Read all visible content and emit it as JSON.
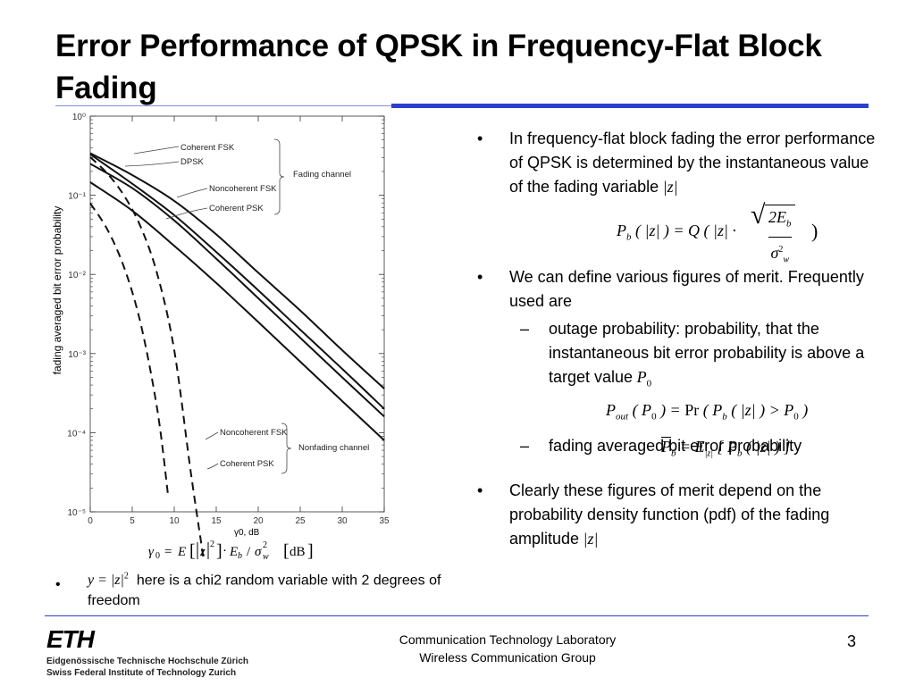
{
  "slide": {
    "title": "Error Performance of QPSK in Frequency-Flat Block Fading",
    "page_number": "3"
  },
  "footer": {
    "line1": "Communication Technology Laboratory",
    "line2": "Wireless Communication Group",
    "logo_mark": "ETH",
    "logo_line1": "Eidgenössische Technische Hochschule Zürich",
    "logo_line2": "Swiss Federal Institute of Technology Zurich"
  },
  "right_bullets": {
    "b1": "In frequency-flat block fading the error performance of QPSK is determined by the instantaneous value of the fading variable",
    "b2": "We can define various figures of merit. Frequently used are",
    "b2_sub1": "outage probability: probability, that the instantaneous bit error probability is above a target value",
    "b2_sub2": "fading averaged bit error probability",
    "b3": "Clearly these figures of merit depend on the probability density function (pdf) of the fading amplitude",
    "bullet_glyph": "•",
    "dash_glyph": "–"
  },
  "left_bullet": {
    "text": "here is a chi2 random variable with 2 degrees of freedom"
  },
  "chart_data": {
    "type": "line",
    "xlabel": "γ0, dB",
    "ylabel": "fading averaged bit error probability",
    "xlim": [
      0,
      35
    ],
    "ylim": [
      1e-05,
      1
    ],
    "y_scale": "log",
    "x_ticks": [
      "0",
      "5",
      "10",
      "15",
      "20",
      "25",
      "30",
      "35"
    ],
    "y_ticks": [
      {
        "value": 1,
        "label": "10⁰"
      },
      {
        "value": 0.1,
        "label": "10⁻¹"
      },
      {
        "value": 0.01,
        "label": "10⁻²"
      },
      {
        "value": 0.001,
        "label": "10⁻³"
      },
      {
        "value": 0.0001,
        "label": "10⁻⁴"
      },
      {
        "value": 1e-05,
        "label": "10⁻⁵"
      }
    ],
    "grid": false,
    "series": [
      {
        "name": "Coherent FSK",
        "style": "solid",
        "x": [
          0,
          5,
          10,
          15,
          20,
          25,
          30,
          35
        ],
        "y": [
          0.34,
          0.18,
          0.085,
          0.032,
          0.0105,
          0.0035,
          0.0011,
          0.00036
        ]
      },
      {
        "name": "DPSK",
        "style": "solid",
        "x": [
          0,
          5,
          10,
          15,
          20,
          25,
          30,
          35
        ],
        "y": [
          0.25,
          0.123,
          0.048,
          0.0158,
          0.005,
          0.00158,
          0.0005,
          0.00016
        ]
      },
      {
        "name": "Noncoherent FSK",
        "style": "solid",
        "x": [
          0,
          5,
          10,
          15,
          20,
          25,
          30,
          35
        ],
        "y": [
          0.33,
          0.14,
          0.056,
          0.0192,
          0.0063,
          0.002,
          0.00064,
          0.0002
        ]
      },
      {
        "name": "Coherent PSK",
        "style": "solid",
        "x": [
          0,
          5,
          10,
          15,
          20,
          25,
          30,
          35
        ],
        "y": [
          0.146,
          0.064,
          0.023,
          0.0078,
          0.0025,
          0.00079,
          0.00025,
          8e-05
        ]
      },
      {
        "name": "Noncoherent FSK",
        "style": "dashed",
        "x": [
          0,
          2,
          4,
          6,
          8,
          10,
          12,
          13.5
        ],
        "y": [
          0.303,
          0.19,
          0.1,
          0.04,
          0.0099,
          0.0011,
          3e-05,
          2.5e-06
        ]
      },
      {
        "name": "Coherent PSK",
        "style": "dashed",
        "x": [
          0,
          2,
          4,
          6,
          8,
          9.3
        ],
        "y": [
          0.079,
          0.0375,
          0.0125,
          0.0024,
          0.00019,
          1.5e-05
        ]
      }
    ],
    "annotations": [
      "Coherent FSK",
      "DPSK",
      "Noncoherent FSK",
      "Coherent PSK",
      "Fading channel",
      "Noncoherent FSK",
      "Nonfading channel",
      "Coherent PSK"
    ]
  }
}
